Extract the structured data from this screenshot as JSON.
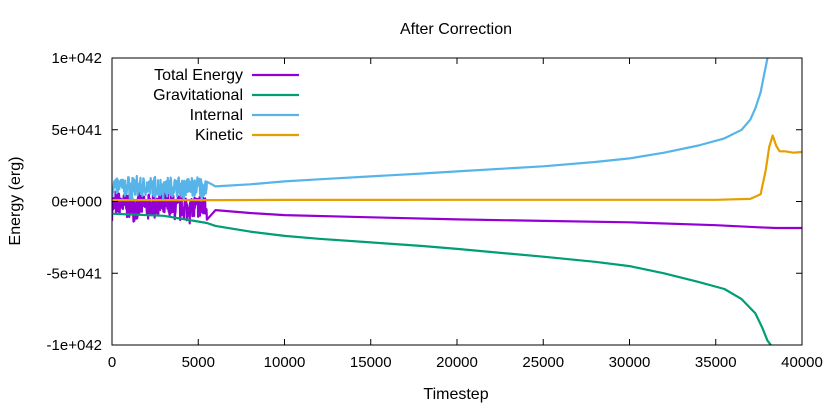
{
  "chart_data": {
    "type": "line",
    "title": "After Correction",
    "xlabel": "Timestep",
    "ylabel": "Energy (erg)",
    "xlim": [
      0,
      40000
    ],
    "ylim": [
      -1e+42,
      1e+42
    ],
    "xticks": [
      {
        "value": 0,
        "label": "0"
      },
      {
        "value": 5000,
        "label": "5000"
      },
      {
        "value": 10000,
        "label": "10000"
      },
      {
        "value": 15000,
        "label": "15000"
      },
      {
        "value": 20000,
        "label": "20000"
      },
      {
        "value": 25000,
        "label": "25000"
      },
      {
        "value": 30000,
        "label": "30000"
      },
      {
        "value": 35000,
        "label": "35000"
      },
      {
        "value": 40000,
        "label": "40000"
      }
    ],
    "yticks": [
      {
        "value": 1e+42,
        "label": "1e+042"
      },
      {
        "value": 5e+41,
        "label": "5e+041"
      },
      {
        "value": 0,
        "label": "0e+000"
      },
      {
        "value": -5e+41,
        "label": "-5e+041"
      },
      {
        "value": -1e+42,
        "label": "-1e+042"
      }
    ],
    "grid": false,
    "legend_position": "top-left",
    "series": [
      {
        "name": "Total Energy",
        "color": "#9400d3",
        "noise": {
          "x0": 0,
          "x1": 5500,
          "amp": 1.2e+41
        },
        "x": [
          0,
          2000,
          5500,
          6000,
          8000,
          10000,
          15000,
          20000,
          25000,
          30000,
          35000,
          37500,
          38500,
          40000
        ],
        "y": [
          -2e+40,
          -3e+40,
          -5e+40,
          -6e+40,
          -8e+40,
          -9.5e+40,
          -1.1e+41,
          -1.25e+41,
          -1.35e+41,
          -1.45e+41,
          -1.65e+41,
          -1.8e+41,
          -1.85e+41,
          -1.85e+41
        ]
      },
      {
        "name": "Gravitational",
        "color": "#009e73",
        "x": [
          0,
          3000,
          5500,
          6000,
          8000,
          10000,
          12000,
          15000,
          18000,
          20000,
          25000,
          28000,
          30000,
          32000,
          34000,
          35500,
          36500,
          37300,
          37700,
          38000,
          38200
        ],
        "y": [
          -8.5e+40,
          -1e+41,
          -1.5e+41,
          -1.7e+41,
          -2.1e+41,
          -2.4e+41,
          -2.6e+41,
          -2.85e+41,
          -3.1e+41,
          -3.3e+41,
          -3.85e+41,
          -4.2e+41,
          -4.5e+41,
          -5e+41,
          -5.6e+41,
          -6.1e+41,
          -6.8e+41,
          -7.8e+41,
          -8.8e+41,
          -9.7e+41,
          -1e+42
        ]
      },
      {
        "name": "Internal",
        "color": "#56b4e9",
        "noise": {
          "x0": 0,
          "x1": 5500,
          "amp": 9e+40,
          "center": 1e+41
        },
        "x": [
          0,
          5500,
          6000,
          8000,
          10000,
          12000,
          15000,
          18000,
          20000,
          25000,
          28000,
          30000,
          32000,
          34000,
          35500,
          36500,
          37000,
          37300,
          37600,
          37800,
          38000
        ],
        "y": [
          1e+41,
          1e+41,
          1.05e+41,
          1.2e+41,
          1.4e+41,
          1.55e+41,
          1.75e+41,
          1.95e+41,
          2.1e+41,
          2.45e+41,
          2.75e+41,
          3e+41,
          3.4e+41,
          3.9e+41,
          4.4e+41,
          5e+41,
          5.7e+41,
          6.5e+41,
          7.6e+41,
          8.8e+41,
          1e+42
        ]
      },
      {
        "name": "Kinetic",
        "color": "#e69f00",
        "x": [
          0,
          6000,
          10000,
          20000,
          30000,
          35000,
          37000,
          37600,
          37900,
          38100,
          38300,
          38500,
          38700,
          39000,
          39500,
          40000
        ],
        "y": [
          1e+40,
          1e+40,
          1.1e+40,
          1.2e+40,
          1.2e+40,
          1.2e+40,
          1.8e+40,
          5e+40,
          2.2e+41,
          3.8e+41,
          4.6e+41,
          3.9e+41,
          3.5e+41,
          3.5e+41,
          3.4e+41,
          3.45e+41
        ]
      }
    ]
  }
}
